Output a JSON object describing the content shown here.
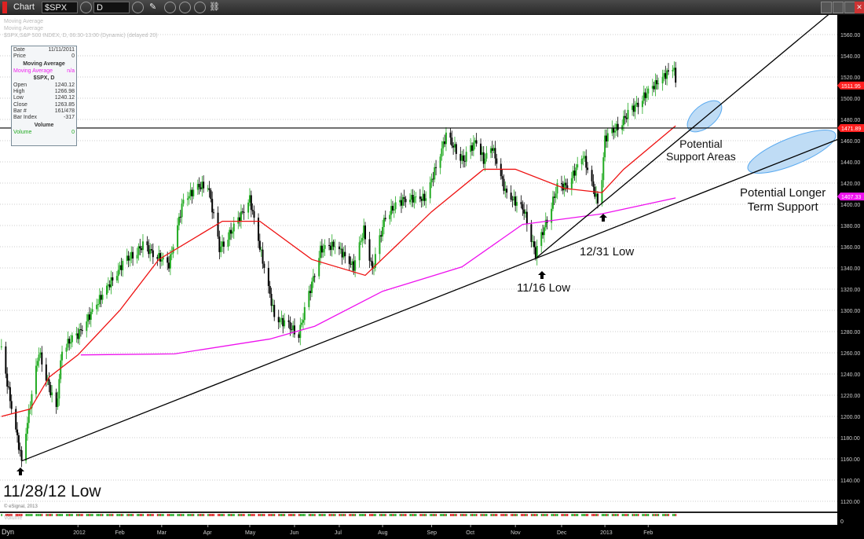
{
  "toolbar": {
    "window_title": "Chart",
    "symbol": "$SPX",
    "interval": "D"
  },
  "legend": {
    "line1": "Moving Average",
    "line2": "Moving Average",
    "line3": "$SPX,S&P 500 INDEX, D, 06:30-13:00 (Dynamic) (delayed 20)"
  },
  "data_window": {
    "date_label": "Date",
    "date": "11/11/2011",
    "price_label": "Price",
    "price": "0",
    "ma_header": "Moving Average",
    "ma_label": "Moving Average",
    "ma_value": "n/a",
    "sym_header": "$SPX, D",
    "open_label": "Open",
    "open": "1240.12",
    "high_label": "High",
    "high": "1266.98",
    "low_label": "Low",
    "low": "1240.12",
    "close_label": "Close",
    "close": "1263.85",
    "bar_label": "Bar #",
    "bar": "161/478",
    "barindex_label": "Bar Index",
    "barindex": "-317",
    "vol_header": "Volume",
    "vol_label": "Volume",
    "vol": "0"
  },
  "copyright": "© eSignal, 2013",
  "volume_label": "Volume",
  "volume_axis": "0",
  "dyn_label": "Dyn",
  "annotations": {
    "low1": "11/28/12 Low",
    "low2": "11/16 Low",
    "low3": "12/31 Low",
    "support": "Potential\nSupport Areas",
    "longer": "Potential Longer\nTerm Support"
  },
  "colors": {
    "up": "#22aa22",
    "down": "#000000",
    "ma50": "#ee1111",
    "ma200": "#ee11ee",
    "ellipse": "#bfdcf5"
  },
  "chart_data": {
    "type": "candlestick",
    "ylim": [
      1110,
      1575
    ],
    "yticks": [
      1120,
      1140,
      1160,
      1180,
      1200,
      1220,
      1240,
      1260,
      1280,
      1300,
      1320,
      1340,
      1360,
      1380,
      1400,
      1420,
      1440,
      1460,
      1480,
      1500,
      1520,
      1540,
      1560
    ],
    "xticks": [
      {
        "label": "2012",
        "date": "2012-01-03"
      },
      {
        "label": "Feb",
        "date": "2012-02-01"
      },
      {
        "label": "Mar",
        "date": "2012-03-01"
      },
      {
        "label": "Apr",
        "date": "2012-04-02"
      },
      {
        "label": "May",
        "date": "2012-05-01"
      },
      {
        "label": "Jun",
        "date": "2012-06-01"
      },
      {
        "label": "Jul",
        "date": "2012-07-02"
      },
      {
        "label": "Aug",
        "date": "2012-08-01"
      },
      {
        "label": "Sep",
        "date": "2012-09-04"
      },
      {
        "label": "Oct",
        "date": "2012-10-01"
      },
      {
        "label": "Nov",
        "date": "2012-11-01"
      },
      {
        "label": "Dec",
        "date": "2012-12-03"
      },
      {
        "label": "2013",
        "date": "2013-01-02"
      },
      {
        "label": "Feb",
        "date": "2013-02-01"
      }
    ],
    "close_approx": [
      [
        "2011-11-11",
        1263
      ],
      [
        "2011-11-17",
        1216
      ],
      [
        "2011-11-25",
        1158
      ],
      [
        "2011-11-29",
        1195
      ],
      [
        "2011-12-07",
        1261
      ],
      [
        "2011-12-19",
        1205
      ],
      [
        "2011-12-23",
        1265
      ],
      [
        "2012-01-03",
        1277
      ],
      [
        "2012-01-20",
        1315
      ],
      [
        "2012-02-03",
        1344
      ],
      [
        "2012-02-17",
        1361
      ],
      [
        "2012-03-06",
        1343
      ],
      [
        "2012-03-16",
        1404
      ],
      [
        "2012-03-26",
        1416
      ],
      [
        "2012-04-02",
        1419
      ],
      [
        "2012-04-10",
        1358
      ],
      [
        "2012-04-20",
        1378
      ],
      [
        "2012-05-01",
        1405
      ],
      [
        "2012-05-18",
        1295
      ],
      [
        "2012-06-04",
        1278
      ],
      [
        "2012-06-19",
        1357
      ],
      [
        "2012-06-29",
        1362
      ],
      [
        "2012-07-12",
        1341
      ],
      [
        "2012-07-19",
        1376
      ],
      [
        "2012-07-25",
        1338
      ],
      [
        "2012-08-03",
        1390
      ],
      [
        "2012-08-16",
        1405
      ],
      [
        "2012-08-31",
        1406
      ],
      [
        "2012-09-14",
        1465
      ],
      [
        "2012-09-26",
        1441
      ],
      [
        "2012-10-05",
        1461
      ],
      [
        "2012-10-10",
        1441
      ],
      [
        "2012-10-16",
        1454
      ],
      [
        "2012-10-25",
        1412
      ],
      [
        "2012-11-07",
        1394
      ],
      [
        "2012-11-15",
        1353
      ],
      [
        "2012-11-30",
        1416
      ],
      [
        "2012-12-07",
        1418
      ],
      [
        "2012-12-18",
        1446
      ],
      [
        "2012-12-28",
        1402
      ],
      [
        "2012-12-31",
        1426
      ],
      [
        "2013-01-02",
        1462
      ],
      [
        "2013-01-10",
        1472
      ],
      [
        "2013-01-18",
        1485
      ],
      [
        "2013-01-28",
        1500
      ],
      [
        "2013-02-05",
        1512
      ],
      [
        "2013-02-19",
        1530
      ],
      [
        "2013-02-20",
        1511
      ]
    ],
    "ma50": [
      [
        "2011-11-11",
        1200
      ],
      [
        "2011-12-01",
        1207
      ],
      [
        "2011-12-14",
        1237
      ],
      [
        "2012-01-03",
        1258
      ],
      [
        "2012-02-01",
        1300
      ],
      [
        "2012-02-28",
        1348
      ],
      [
        "2012-04-12",
        1384
      ],
      [
        "2012-05-08",
        1384
      ],
      [
        "2012-06-13",
        1348
      ],
      [
        "2012-07-20",
        1333
      ],
      [
        "2012-09-04",
        1393
      ],
      [
        "2012-10-10",
        1433
      ],
      [
        "2012-11-01",
        1433
      ],
      [
        "2012-12-05",
        1415
      ],
      [
        "2012-12-31",
        1411
      ],
      [
        "2013-01-15",
        1433
      ],
      [
        "2013-02-20",
        1474
      ]
    ],
    "ma200": [
      [
        "2012-01-05",
        1258
      ],
      [
        "2012-03-10",
        1259
      ],
      [
        "2012-05-15",
        1273
      ],
      [
        "2012-06-15",
        1285
      ],
      [
        "2012-08-01",
        1318
      ],
      [
        "2012-09-25",
        1341
      ],
      [
        "2012-11-06",
        1381
      ],
      [
        "2012-12-31",
        1391
      ],
      [
        "2013-02-20",
        1406
      ]
    ],
    "hline": 1471.89,
    "price_tags": [
      {
        "value": "1511.95",
        "color": "#ff2020"
      },
      {
        "value": "1471.89",
        "color": "#ff2020"
      },
      {
        "value": "1407.33",
        "color": "#ee11ee"
      }
    ],
    "trendlines": [
      [
        [
          "2011-11-25",
          1158
        ],
        [
          "2013-06-12",
          1461
        ]
      ],
      [
        [
          "2012-11-16",
          1350
        ],
        [
          "2013-06-06",
          1579
        ]
      ]
    ]
  }
}
